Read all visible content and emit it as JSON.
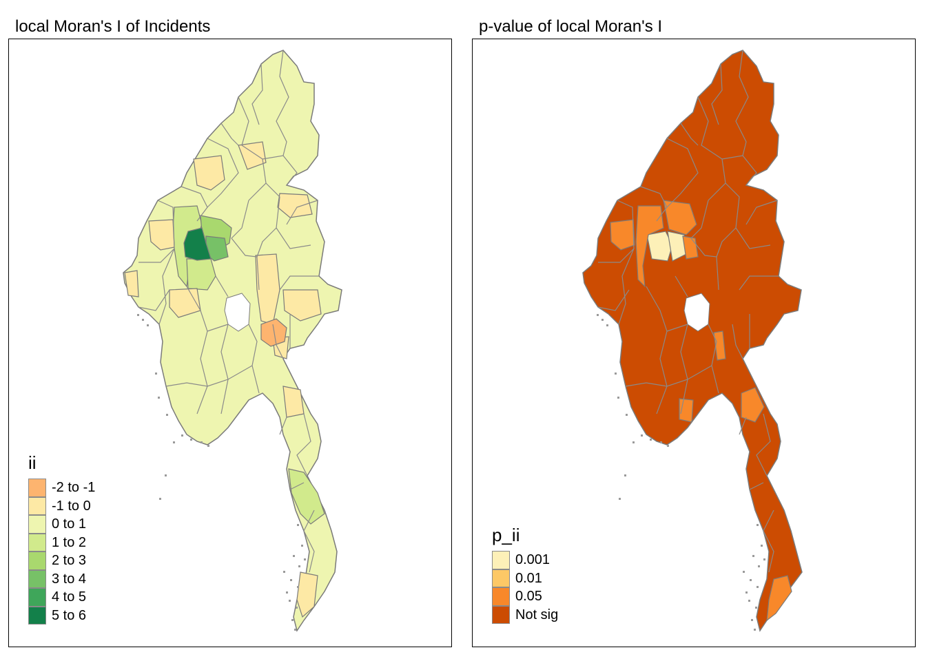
{
  "left_panel": {
    "title": "local Moran's I of Incidents",
    "legend": {
      "title": "ii",
      "entries": [
        {
          "label": "-2 to -1",
          "color": "#fdb46f"
        },
        {
          "label": "-1 to 0",
          "color": "#fde9a5"
        },
        {
          "label": "0 to 1",
          "color": "#eef5b0"
        },
        {
          "label": "1 to 2",
          "color": "#d1ea8c"
        },
        {
          "label": "2 to 3",
          "color": "#a9d86e"
        },
        {
          "label": "3 to 4",
          "color": "#77c167"
        },
        {
          "label": "4 to 5",
          "color": "#3fa65a"
        },
        {
          "label": "5 to 6",
          "color": "#13804a"
        }
      ]
    }
  },
  "right_panel": {
    "title": "p-value of local Moran's I",
    "legend": {
      "title": "p_ii",
      "entries": [
        {
          "label": "0.001",
          "color": "#fdf0b8"
        },
        {
          "label": "0.01",
          "color": "#fdc866"
        },
        {
          "label": "0.05",
          "color": "#f8882a"
        },
        {
          "label": "Not sig",
          "color": "#cc4c02"
        }
      ]
    }
  },
  "map_style": {
    "border_color": "#7a7a7a",
    "left_base_color": "#eef5b0",
    "right_base_color": "#cc4c02"
  }
}
